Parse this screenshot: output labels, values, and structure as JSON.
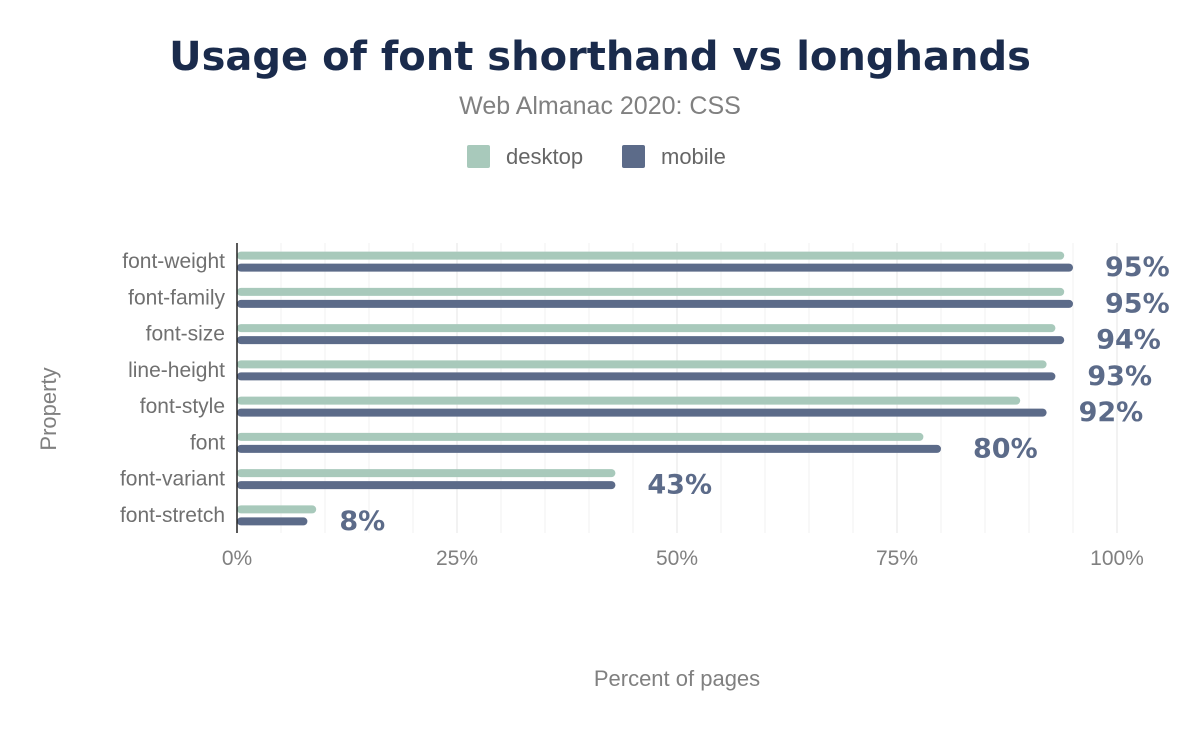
{
  "chart_data": {
    "type": "bar",
    "orientation": "horizontal",
    "title": "Usage of font shorthand vs longhands",
    "subtitle": "Web Almanac 2020: CSS",
    "xlabel": "Percent of pages",
    "ylabel": "Property",
    "xlim": [
      0,
      100
    ],
    "x_ticks": [
      0,
      25,
      50,
      75,
      100
    ],
    "x_tick_labels": [
      "0%",
      "25%",
      "50%",
      "75%",
      "100%"
    ],
    "grid": true,
    "legend_position": "top-center",
    "categories": [
      "font-weight",
      "font-family",
      "font-size",
      "line-height",
      "font-style",
      "font",
      "font-variant",
      "font-stretch"
    ],
    "series": [
      {
        "name": "desktop",
        "color": "#a8c9bb",
        "values": [
          94,
          94,
          93,
          92,
          89,
          78,
          43,
          9
        ]
      },
      {
        "name": "mobile",
        "color": "#5c6b89",
        "values": [
          95,
          95,
          94,
          93,
          92,
          80,
          43,
          8
        ]
      }
    ],
    "data_labels": [
      "95%",
      "95%",
      "94%",
      "93%",
      "92%",
      "80%",
      "43%",
      "8%"
    ]
  }
}
